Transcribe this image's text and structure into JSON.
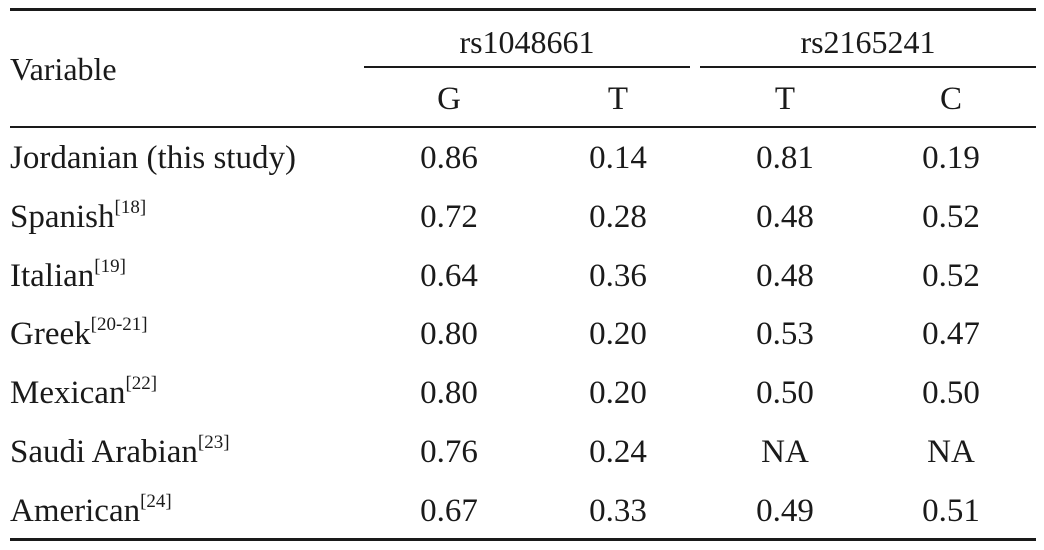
{
  "table": {
    "header": {
      "variable": "Variable",
      "groups": [
        "rs1048661",
        "rs2165241"
      ],
      "columns": [
        "G",
        "T",
        "T",
        "C"
      ]
    },
    "rows": [
      {
        "label": "Jordanian (this study)",
        "ref": "",
        "values": [
          "0.86",
          "0.14",
          "0.81",
          "0.19"
        ]
      },
      {
        "label": "Spanish",
        "ref": "[18]",
        "values": [
          "0.72",
          "0.28",
          "0.48",
          "0.52"
        ]
      },
      {
        "label": "Italian",
        "ref": "[19]",
        "values": [
          "0.64",
          "0.36",
          "0.48",
          "0.52"
        ]
      },
      {
        "label": "Greek",
        "ref": "[20-21]",
        "values": [
          "0.80",
          "0.20",
          "0.53",
          "0.47"
        ]
      },
      {
        "label": "Mexican",
        "ref": "[22]",
        "values": [
          "0.80",
          "0.20",
          "0.50",
          "0.50"
        ]
      },
      {
        "label": "Saudi Arabian",
        "ref": "[23]",
        "values": [
          "0.76",
          "0.24",
          "NA",
          "NA"
        ]
      },
      {
        "label": "American",
        "ref": "[24]",
        "values": [
          "0.67",
          "0.33",
          "0.49",
          "0.51"
        ]
      }
    ]
  }
}
